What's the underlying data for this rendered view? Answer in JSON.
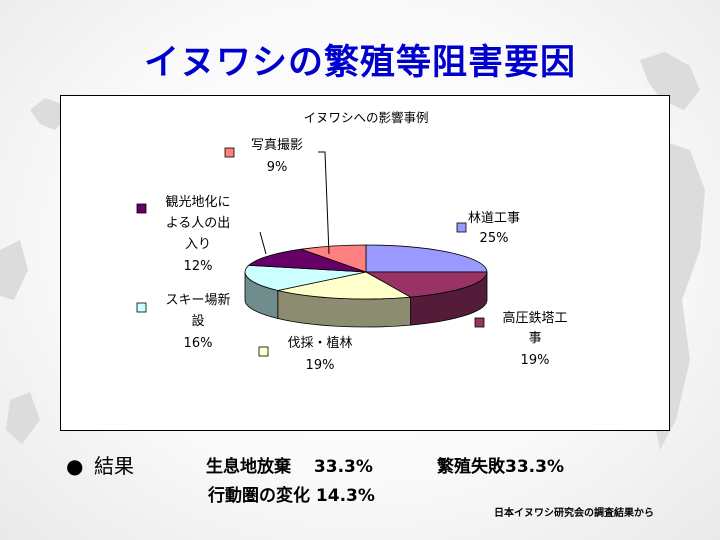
{
  "slide_title": "イヌワシの繁殖等阻害要因",
  "chart_data": {
    "type": "pie",
    "title": "イヌワシへの影響事例",
    "slices": [
      {
        "label": "林道工事",
        "value": 25,
        "pct_label": "25%",
        "color": "#9999ff"
      },
      {
        "label": "高圧鉄塔工事",
        "value": 19,
        "pct_label": "19%",
        "color": "#993366"
      },
      {
        "label": "伐採・植林",
        "value": 19,
        "pct_label": "19%",
        "color": "#ffffcc"
      },
      {
        "label": "スキー場新設",
        "value": 16,
        "pct_label": "16%",
        "color": "#ccffff"
      },
      {
        "label": "観光地化による人の出入り",
        "value": 12,
        "pct_label": "12%",
        "color": "#660066"
      },
      {
        "label": "写真撮影",
        "value": 9,
        "pct_label": "9%",
        "color": "#ff8080"
      }
    ]
  },
  "labels": {
    "rindo": "林道工事",
    "koatsu_1": "高圧鉄塔工",
    "koatsu_2": "事",
    "bassai": "伐採・植林",
    "ski_1": "スキー場新",
    "ski_2": "設",
    "kanko_1": "観光地化に",
    "kanko_2": "よる人の出",
    "kanko_3": "入り",
    "shashin": "写真撮影"
  },
  "results": {
    "bullet": "●",
    "label": "結果",
    "item1": "生息地放棄　 33.3%",
    "item2": "繁殖失敗33.3%",
    "item3": "行動圏の変化 14.3%"
  },
  "source_note": "日本イヌワシ研究会の調査結果から"
}
